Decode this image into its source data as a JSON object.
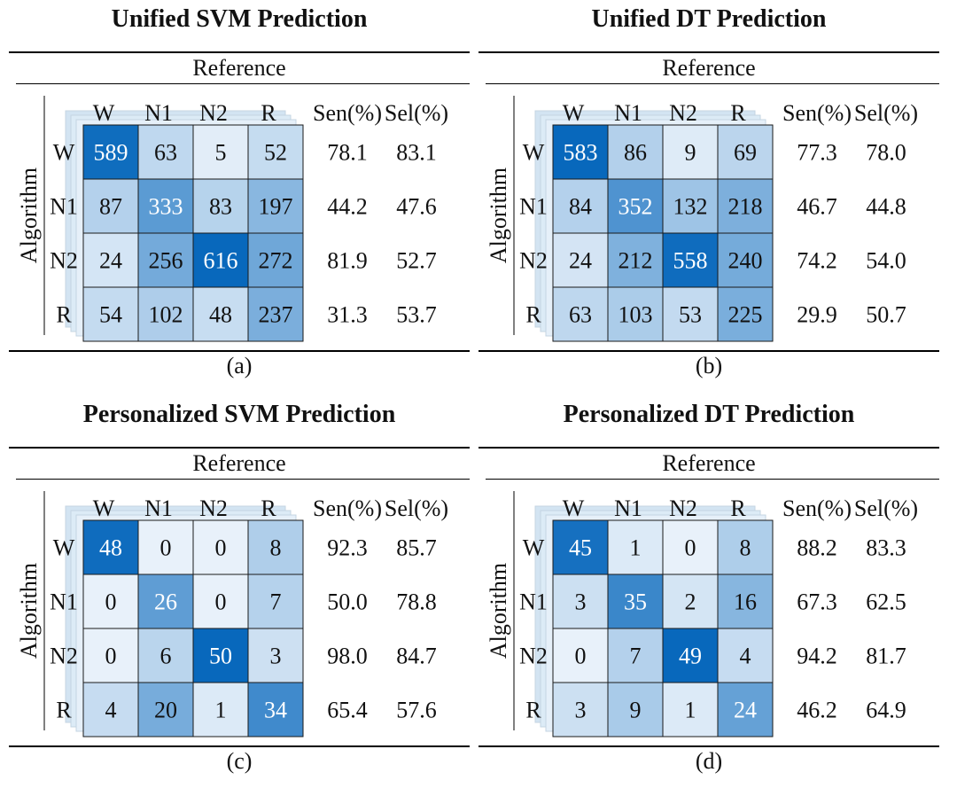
{
  "chart_data": [
    {
      "type": "heatmap",
      "title": "Unified SVM Prediction",
      "caption": "(a)",
      "xlabel": "Reference",
      "ylabel": "Algorithm",
      "x": [
        "W",
        "N1",
        "N2",
        "R"
      ],
      "y": [
        "W",
        "N1",
        "N2",
        "R"
      ],
      "values": [
        [
          589,
          63,
          5,
          52
        ],
        [
          87,
          333,
          83,
          197
        ],
        [
          24,
          256,
          616,
          272
        ],
        [
          54,
          102,
          48,
          237
        ]
      ],
      "extra_columns": [
        "Sen(%)",
        "Sel(%)"
      ],
      "sen": [
        "78.1",
        "44.2",
        "81.9",
        "31.3"
      ],
      "sel": [
        "83.1",
        "47.6",
        "52.7",
        "53.7"
      ]
    },
    {
      "type": "heatmap",
      "title": "Unified DT Prediction",
      "caption": "(b)",
      "xlabel": "Reference",
      "ylabel": "Algorithm",
      "x": [
        "W",
        "N1",
        "N2",
        "R"
      ],
      "y": [
        "W",
        "N1",
        "N2",
        "R"
      ],
      "values": [
        [
          583,
          86,
          9,
          69
        ],
        [
          84,
          352,
          132,
          218
        ],
        [
          24,
          212,
          558,
          240
        ],
        [
          63,
          103,
          53,
          225
        ]
      ],
      "extra_columns": [
        "Sen(%)",
        "Sel(%)"
      ],
      "sen": [
        "77.3",
        "46.7",
        "74.2",
        "29.9"
      ],
      "sel": [
        "78.0",
        "44.8",
        "54.0",
        "50.7"
      ]
    },
    {
      "type": "heatmap",
      "title": "Personalized SVM Prediction",
      "caption": "(c)",
      "xlabel": "Reference",
      "ylabel": "Algorithm",
      "x": [
        "W",
        "N1",
        "N2",
        "R"
      ],
      "y": [
        "W",
        "N1",
        "N2",
        "R"
      ],
      "values": [
        [
          48,
          0,
          0,
          8
        ],
        [
          0,
          26,
          0,
          7
        ],
        [
          0,
          6,
          50,
          3
        ],
        [
          4,
          20,
          1,
          34
        ]
      ],
      "extra_columns": [
        "Sen(%)",
        "Sel(%)"
      ],
      "sen": [
        "92.3",
        "50.0",
        "98.0",
        "65.4"
      ],
      "sel": [
        "85.7",
        "78.8",
        "84.7",
        "57.6"
      ]
    },
    {
      "type": "heatmap",
      "title": "Personalized DT Prediction",
      "caption": "(d)",
      "xlabel": "Reference",
      "ylabel": "Algorithm",
      "x": [
        "W",
        "N1",
        "N2",
        "R"
      ],
      "y": [
        "W",
        "N1",
        "N2",
        "R"
      ],
      "values": [
        [
          45,
          1,
          0,
          8
        ],
        [
          3,
          35,
          2,
          16
        ],
        [
          0,
          7,
          49,
          4
        ],
        [
          3,
          9,
          1,
          24
        ]
      ],
      "extra_columns": [
        "Sen(%)",
        "Sel(%)"
      ],
      "sen": [
        "88.2",
        "67.3",
        "94.2",
        "46.2"
      ],
      "sel": [
        "83.3",
        "62.5",
        "81.7",
        "64.9"
      ]
    }
  ]
}
